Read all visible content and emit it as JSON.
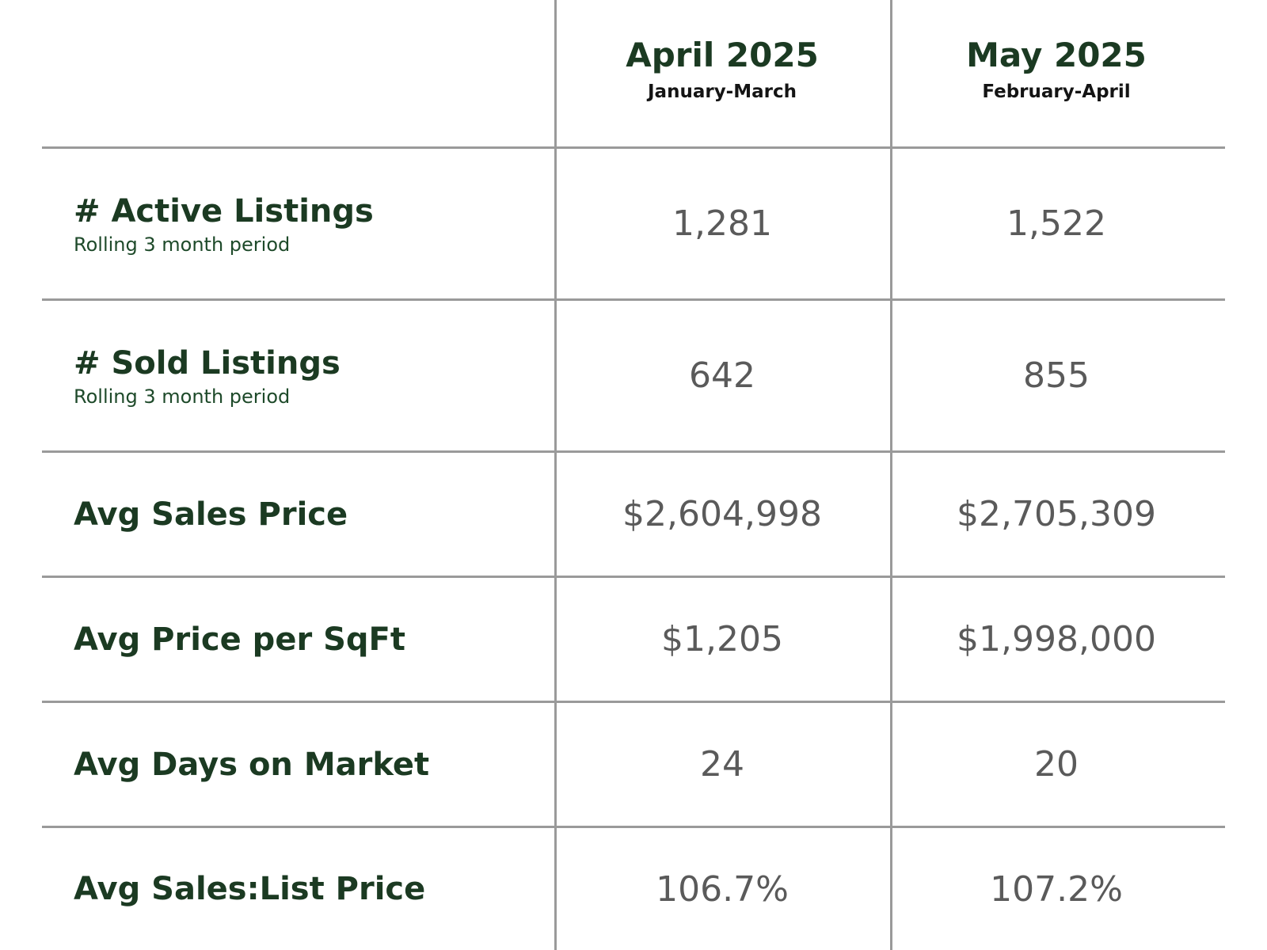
{
  "columns": [
    {
      "title": "April 2025",
      "subtitle": "January-March"
    },
    {
      "title": "May 2025",
      "subtitle": "February-April"
    }
  ],
  "rows": [
    {
      "label": "# Active Listings",
      "sublabel": "Rolling 3 month period",
      "values": [
        "1,281",
        "1,522"
      ]
    },
    {
      "label": "# Sold Listings",
      "sublabel": "Rolling 3 month period",
      "values": [
        "642",
        "855"
      ]
    },
    {
      "label": "Avg Sales Price",
      "values": [
        "$2,604,998",
        "$2,705,309"
      ]
    },
    {
      "label": "Avg Price per SqFt",
      "values": [
        "$1,205",
        "$1,998,000"
      ]
    },
    {
      "label": "Avg Days on Market",
      "values": [
        "24",
        "20"
      ]
    },
    {
      "label": "Avg Sales:List Price",
      "values": [
        "106.7%",
        "107.2%"
      ]
    }
  ],
  "colors": {
    "heading_green": "#1b3a22",
    "value_gray": "#5a5a5a",
    "rule_gray": "#9a9a9a"
  }
}
